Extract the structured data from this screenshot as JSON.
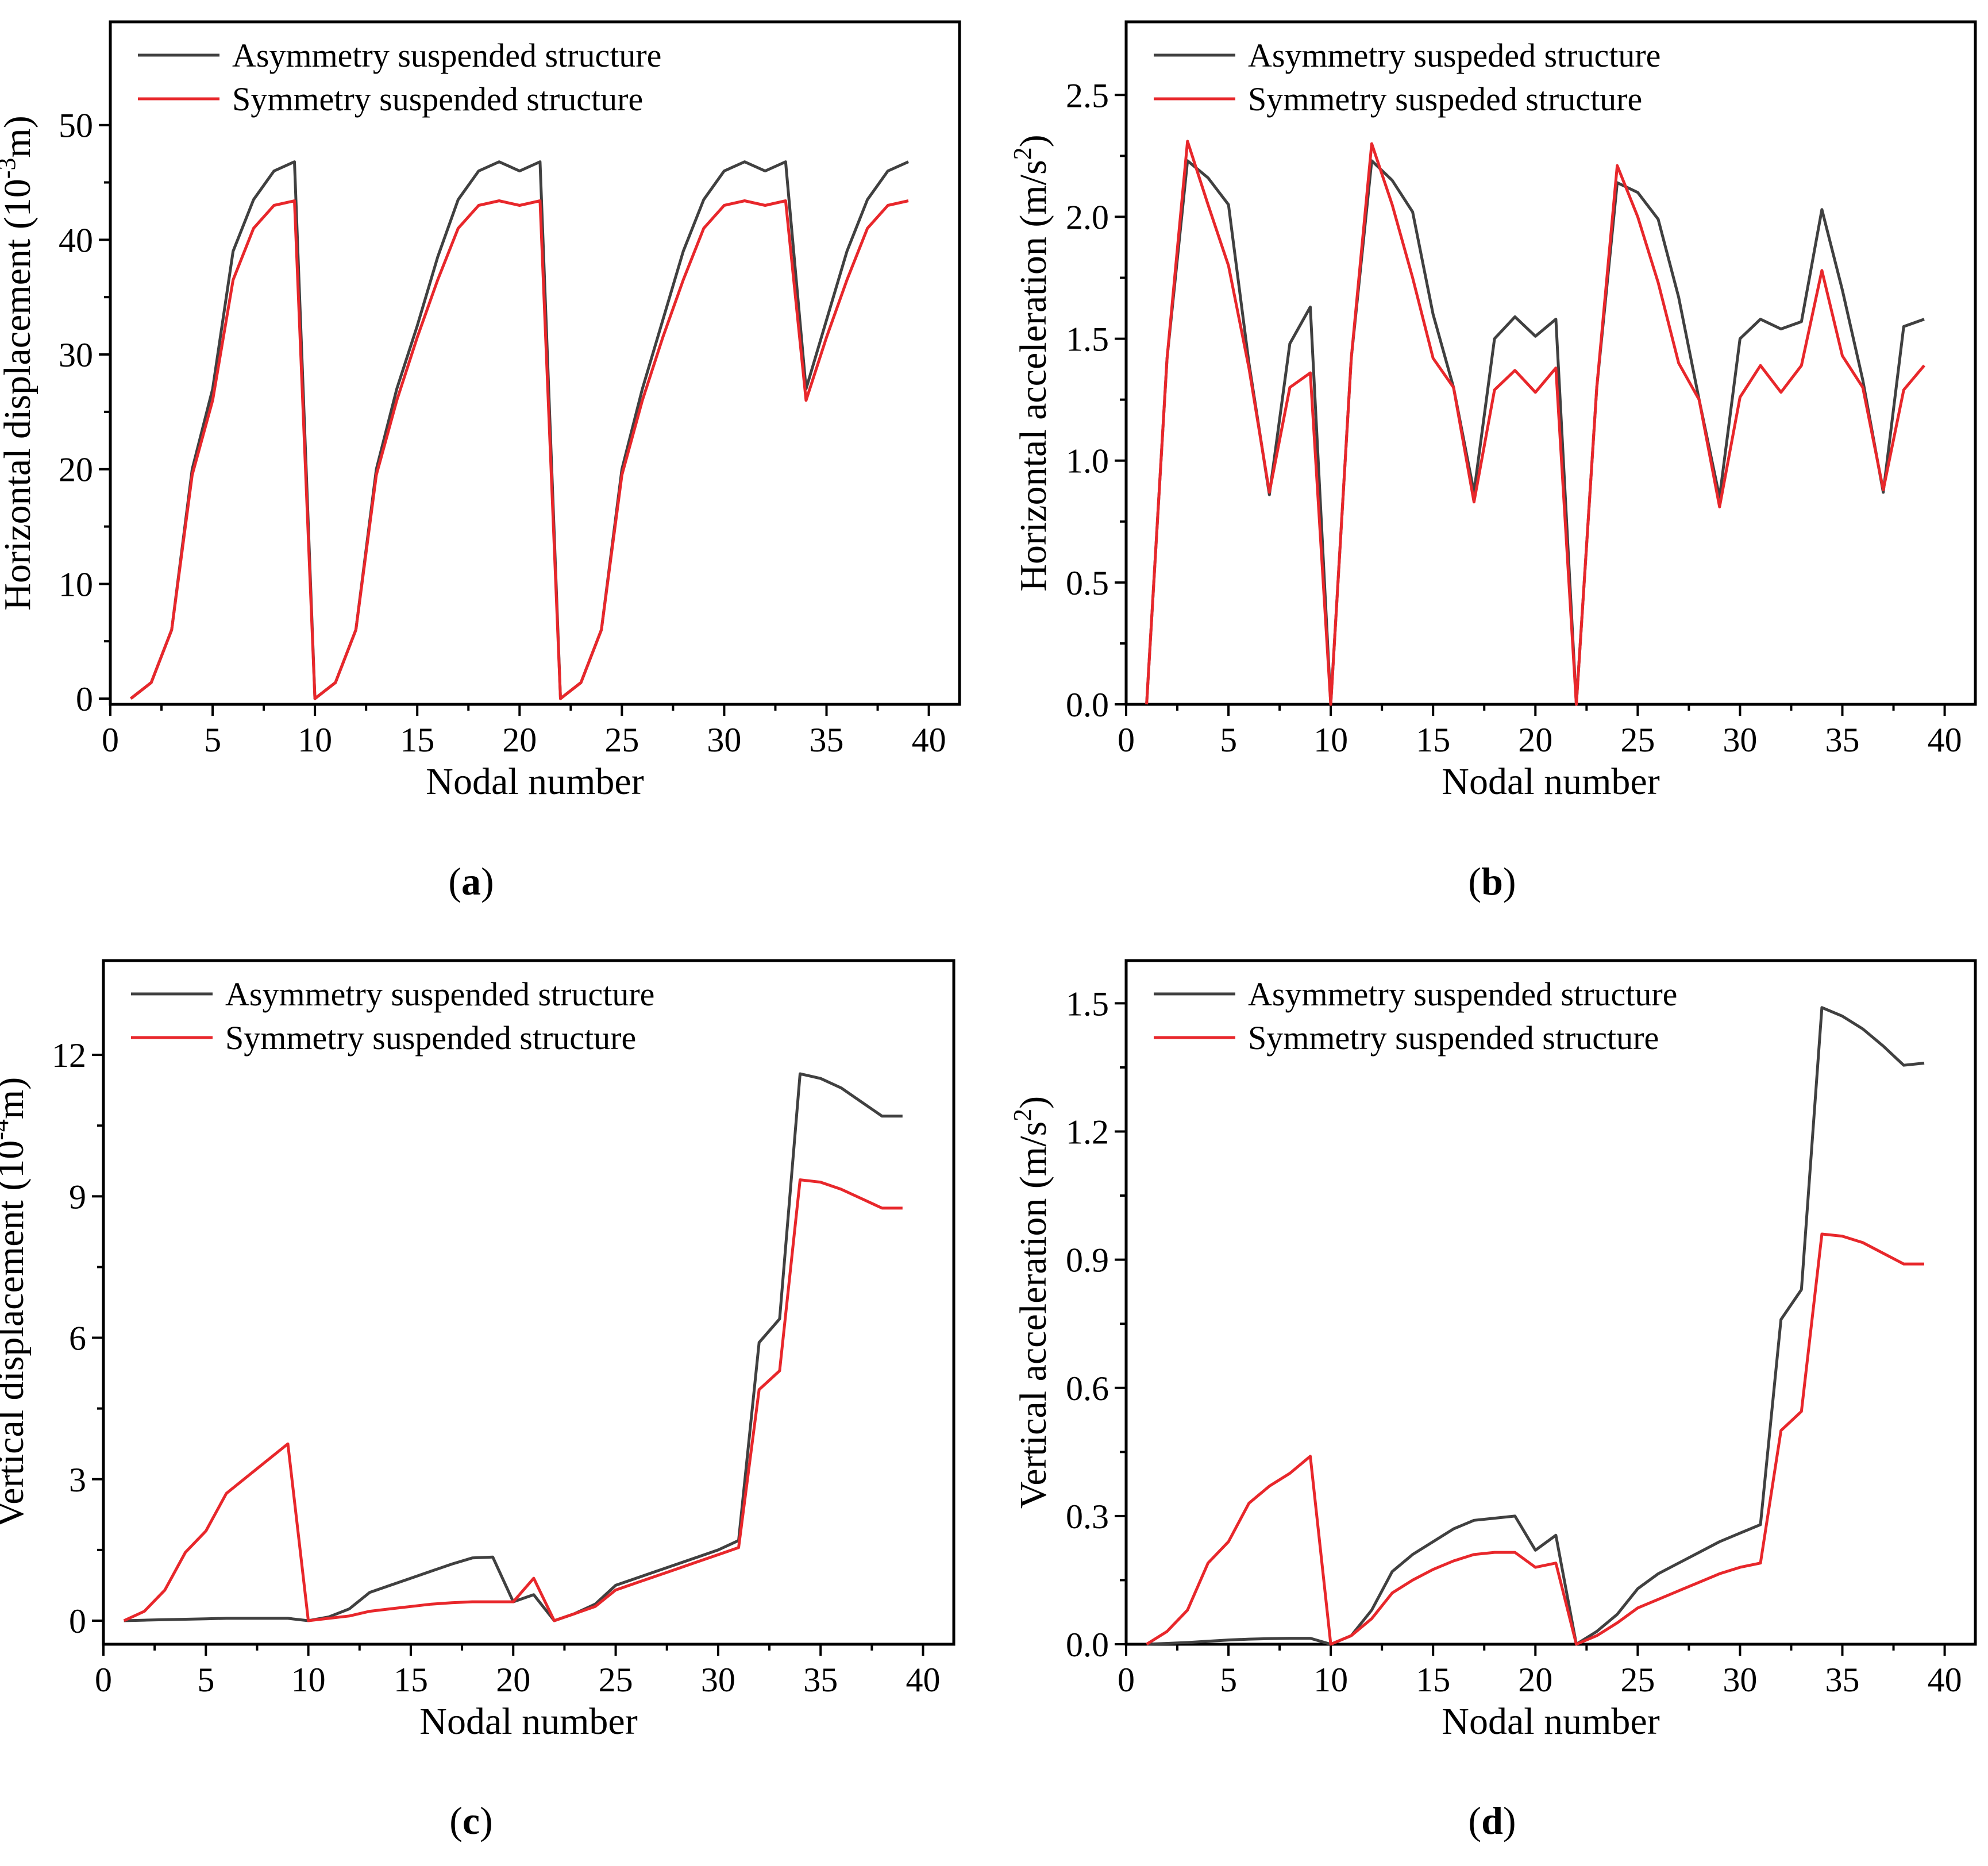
{
  "colors": {
    "asymmetry": "#404040",
    "symmetry": "#e8272b"
  },
  "chart_data": [
    {
      "id": "a",
      "type": "line",
      "caption": "a",
      "xlabel": "Nodal number",
      "ylabel": "Horizontal displacement (10⁻³m)",
      "ylabel_parts": [
        "Horizontal displacement (10",
        "-3",
        "m)"
      ],
      "xlim": [
        0,
        41.5
      ],
      "ylim": [
        -0.5,
        59
      ],
      "xticks": [
        0,
        5,
        10,
        15,
        20,
        25,
        30,
        35,
        40
      ],
      "yticks": [
        0,
        10,
        20,
        30,
        40,
        50
      ],
      "ytick_labels": [
        "0",
        "10",
        "20",
        "30",
        "40",
        "50"
      ],
      "legend": [
        "Asymmetry suspended structure",
        "Symmetry suspended structure"
      ],
      "series": [
        {
          "name": "Asymmetry suspended structure",
          "color_key": "asymmetry",
          "x": [
            1,
            2,
            3,
            4,
            5,
            6,
            7,
            8,
            9,
            10,
            11,
            12,
            13,
            14,
            15,
            16,
            17,
            18,
            19,
            20,
            21,
            22,
            23,
            24,
            25,
            26,
            27,
            28,
            29,
            30,
            31,
            32,
            33,
            34,
            35,
            36,
            37,
            38,
            39
          ],
          "y": [
            0,
            1.4,
            6,
            20,
            27,
            39,
            43.5,
            46,
            46.8,
            0,
            1.4,
            6,
            20,
            27,
            32.5,
            38.5,
            43.5,
            46,
            46.8,
            46,
            46.8,
            0,
            1.4,
            6,
            20,
            27,
            33,
            39,
            43.5,
            46,
            46.8,
            46,
            46.8,
            27,
            33,
            39,
            43.5,
            46,
            46.8
          ]
        },
        {
          "name": "Symmetry suspended structure",
          "color_key": "symmetry",
          "x": [
            1,
            2,
            3,
            4,
            5,
            6,
            7,
            8,
            9,
            10,
            11,
            12,
            13,
            14,
            15,
            16,
            17,
            18,
            19,
            20,
            21,
            22,
            23,
            24,
            25,
            26,
            27,
            28,
            29,
            30,
            31,
            32,
            33,
            34,
            35,
            36,
            37,
            38,
            39
          ],
          "y": [
            0,
            1.4,
            6,
            19.5,
            26,
            36.5,
            41,
            43,
            43.4,
            0,
            1.4,
            6,
            19.5,
            26,
            31.5,
            36.5,
            41,
            43,
            43.4,
            43,
            43.4,
            0,
            1.4,
            6,
            19.5,
            26,
            31.5,
            36.5,
            41,
            43,
            43.4,
            43,
            43.4,
            26,
            31.5,
            36.5,
            41,
            43,
            43.4
          ]
        }
      ]
    },
    {
      "id": "b",
      "type": "line",
      "caption": "b",
      "xlabel": "Nodal number",
      "ylabel": "Horizontal acceleration (m/s²)",
      "ylabel_parts": [
        "Horizontal acceleration (m/s",
        "2",
        ")"
      ],
      "xlim": [
        0,
        41.5
      ],
      "ylim": [
        0,
        2.8
      ],
      "xticks": [
        0,
        5,
        10,
        15,
        20,
        25,
        30,
        35,
        40
      ],
      "yticks": [
        0,
        0.5,
        1.0,
        1.5,
        2.0,
        2.5
      ],
      "ytick_labels": [
        "0.0",
        "0.5",
        "1.0",
        "1.5",
        "2.0",
        "2.5"
      ],
      "legend": [
        "Asymmetry suspeded structure",
        "Symmetry suspeded structure"
      ],
      "series": [
        {
          "name": "Asymmetry suspeded structure",
          "color_key": "asymmetry",
          "x": [
            1,
            2,
            3,
            4,
            5,
            6,
            7,
            8,
            9,
            10,
            11,
            12,
            13,
            14,
            15,
            16,
            17,
            18,
            19,
            20,
            21,
            22,
            23,
            24,
            25,
            26,
            27,
            28,
            29,
            30,
            31,
            32,
            33,
            34,
            35,
            36,
            37,
            38,
            39
          ],
          "y": [
            0,
            1.42,
            2.23,
            2.16,
            2.05,
            1.4,
            0.86,
            1.48,
            1.63,
            0,
            1.42,
            2.23,
            2.15,
            2.02,
            1.6,
            1.3,
            0.87,
            1.5,
            1.59,
            1.51,
            1.58,
            0,
            1.3,
            2.14,
            2.1,
            1.99,
            1.67,
            1.25,
            0.85,
            1.5,
            1.58,
            1.54,
            1.57,
            2.03,
            1.7,
            1.33,
            0.87,
            1.55,
            1.58
          ]
        },
        {
          "name": "Symmetry suspeded structure",
          "color_key": "symmetry",
          "x": [
            1,
            2,
            3,
            4,
            5,
            6,
            7,
            8,
            9,
            10,
            11,
            12,
            13,
            14,
            15,
            16,
            17,
            18,
            19,
            20,
            21,
            22,
            23,
            24,
            25,
            26,
            27,
            28,
            29,
            30,
            31,
            32,
            33,
            34,
            35,
            36,
            37,
            38,
            39
          ],
          "y": [
            0,
            1.42,
            2.31,
            2.05,
            1.8,
            1.38,
            0.87,
            1.3,
            1.36,
            0,
            1.42,
            2.3,
            2.05,
            1.75,
            1.42,
            1.3,
            0.83,
            1.29,
            1.37,
            1.28,
            1.38,
            0,
            1.3,
            2.21,
            2.0,
            1.73,
            1.4,
            1.25,
            0.81,
            1.26,
            1.39,
            1.28,
            1.39,
            1.78,
            1.43,
            1.3,
            0.88,
            1.29,
            1.39
          ]
        }
      ]
    },
    {
      "id": "c",
      "type": "line",
      "caption": "c",
      "xlabel": "Nodal number",
      "ylabel": "Vertical displacement (10⁻⁴m)",
      "ylabel_parts": [
        "Vertical displacement (10",
        "-4",
        "m)"
      ],
      "xlim": [
        0,
        41.5
      ],
      "ylim": [
        -0.5,
        14
      ],
      "xticks": [
        0,
        5,
        10,
        15,
        20,
        25,
        30,
        35,
        40
      ],
      "yticks": [
        0,
        3,
        6,
        9,
        12
      ],
      "ytick_labels": [
        "0",
        "3",
        "6",
        "9",
        "12"
      ],
      "legend": [
        "Asymmetry suspended structure",
        "Symmetry suspended structure"
      ],
      "series": [
        {
          "name": "Asymmetry suspended structure",
          "color_key": "asymmetry",
          "x": [
            1,
            2,
            3,
            4,
            5,
            6,
            7,
            8,
            9,
            10,
            11,
            12,
            13,
            14,
            15,
            16,
            17,
            18,
            19,
            20,
            21,
            22,
            23,
            24,
            25,
            26,
            27,
            28,
            29,
            30,
            31,
            32,
            33,
            34,
            35,
            36,
            37,
            38,
            39
          ],
          "y": [
            0,
            0.01,
            0.02,
            0.03,
            0.04,
            0.05,
            0.05,
            0.05,
            0.05,
            0,
            0.08,
            0.25,
            0.6,
            0.75,
            0.9,
            1.05,
            1.2,
            1.33,
            1.35,
            0.4,
            0.55,
            0,
            0.15,
            0.35,
            0.75,
            0.9,
            1.05,
            1.2,
            1.35,
            1.5,
            1.7,
            5.9,
            6.4,
            11.6,
            11.5,
            11.3,
            11.0,
            10.7,
            10.7
          ]
        },
        {
          "name": "Symmetry suspended structure",
          "color_key": "symmetry",
          "x": [
            1,
            2,
            3,
            4,
            5,
            6,
            7,
            8,
            9,
            10,
            11,
            12,
            13,
            14,
            15,
            16,
            17,
            18,
            19,
            20,
            21,
            22,
            23,
            24,
            25,
            26,
            27,
            28,
            29,
            30,
            31,
            32,
            33,
            34,
            35,
            36,
            37,
            38,
            39
          ],
          "y": [
            0,
            0.2,
            0.65,
            1.45,
            1.9,
            2.7,
            3.05,
            3.4,
            3.75,
            0,
            0.05,
            0.1,
            0.2,
            0.25,
            0.3,
            0.35,
            0.38,
            0.4,
            0.4,
            0.4,
            0.9,
            0,
            0.15,
            0.3,
            0.65,
            0.8,
            0.95,
            1.1,
            1.25,
            1.4,
            1.55,
            4.9,
            5.3,
            9.35,
            9.3,
            9.15,
            8.95,
            8.75,
            8.75
          ]
        }
      ]
    },
    {
      "id": "d",
      "type": "line",
      "caption": "d",
      "xlabel": "Nodal number",
      "ylabel": "Vertical acceleration (m/s²)",
      "ylabel_parts": [
        "Vertical acceleration (m/s",
        "2",
        ")"
      ],
      "xlim": [
        0,
        41.5
      ],
      "ylim": [
        0,
        1.6
      ],
      "xticks": [
        0,
        5,
        10,
        15,
        20,
        25,
        30,
        35,
        40
      ],
      "yticks": [
        0,
        0.3,
        0.6,
        0.9,
        1.2,
        1.5
      ],
      "ytick_labels": [
        "0.0",
        "0.3",
        "0.6",
        "0.9",
        "1.2",
        "1.5"
      ],
      "legend": [
        "Asymmetry suspended structure",
        "Symmetry suspended structure"
      ],
      "series": [
        {
          "name": "Asymmetry suspended structure",
          "color_key": "asymmetry",
          "x": [
            1,
            2,
            3,
            4,
            5,
            6,
            7,
            8,
            9,
            10,
            11,
            12,
            13,
            14,
            15,
            16,
            17,
            18,
            19,
            20,
            21,
            22,
            23,
            24,
            25,
            26,
            27,
            28,
            29,
            30,
            31,
            32,
            33,
            34,
            35,
            36,
            37,
            38,
            39
          ],
          "y": [
            0,
            0.002,
            0.004,
            0.007,
            0.01,
            0.012,
            0.013,
            0.014,
            0.014,
            0,
            0.02,
            0.08,
            0.17,
            0.21,
            0.24,
            0.27,
            0.29,
            0.295,
            0.3,
            0.22,
            0.255,
            0,
            0.03,
            0.07,
            0.13,
            0.165,
            0.19,
            0.215,
            0.24,
            0.26,
            0.28,
            0.76,
            0.83,
            1.49,
            1.47,
            1.44,
            1.4,
            1.355,
            1.36
          ]
        },
        {
          "name": "Symmetry suspended structure",
          "color_key": "symmetry",
          "x": [
            1,
            2,
            3,
            4,
            5,
            6,
            7,
            8,
            9,
            10,
            11,
            12,
            13,
            14,
            15,
            16,
            17,
            18,
            19,
            20,
            21,
            22,
            23,
            24,
            25,
            26,
            27,
            28,
            29,
            30,
            31,
            32,
            33,
            34,
            35,
            36,
            37,
            38,
            39
          ],
          "y": [
            0,
            0.03,
            0.08,
            0.19,
            0.24,
            0.33,
            0.37,
            0.4,
            0.44,
            0,
            0.02,
            0.06,
            0.12,
            0.15,
            0.175,
            0.195,
            0.21,
            0.215,
            0.215,
            0.18,
            0.19,
            0,
            0.02,
            0.05,
            0.085,
            0.105,
            0.125,
            0.145,
            0.165,
            0.18,
            0.19,
            0.5,
            0.545,
            0.96,
            0.955,
            0.94,
            0.915,
            0.89,
            0.89
          ]
        }
      ]
    }
  ]
}
